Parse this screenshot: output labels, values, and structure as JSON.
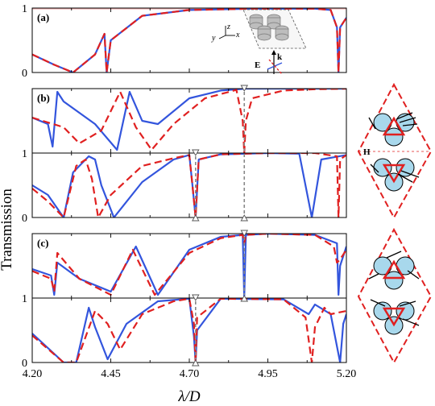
{
  "figure": {
    "ylabel": "Transmission",
    "xlabel": "λ/D",
    "series_colors": {
      "blue_solid": "#3355dd",
      "red_dashed": "#e02020"
    },
    "inset_labels": {
      "E": "E",
      "k": "k",
      "H": "H",
      "x": "x",
      "y": "y",
      "z": "z"
    }
  },
  "chart_data": [
    {
      "type": "line",
      "panel": "(a)",
      "panel_label": "(a)",
      "xlim": [
        4.2,
        5.2
      ],
      "ylim": [
        0,
        1
      ],
      "yticks": [
        "0",
        "1"
      ],
      "series": [
        {
          "style": "blue_solid",
          "x": [
            4.2,
            4.27,
            4.33,
            4.4,
            4.43,
            4.437,
            4.45,
            4.55,
            4.7,
            4.9,
            5.1,
            5.15,
            5.17,
            5.175,
            5.18,
            5.2
          ],
          "y": [
            0.28,
            0.12,
            0.0,
            0.28,
            0.6,
            0.0,
            0.5,
            0.88,
            0.97,
            0.99,
            0.99,
            0.97,
            0.7,
            0.0,
            0.7,
            0.85
          ]
        },
        {
          "style": "red_dashed",
          "x": [
            4.2,
            4.27,
            4.33,
            4.4,
            4.43,
            4.437,
            4.45,
            4.55,
            4.7,
            4.9,
            5.1,
            5.15,
            5.17,
            5.175,
            5.18,
            5.2
          ],
          "y": [
            0.28,
            0.12,
            0.0,
            0.28,
            0.6,
            0.0,
            0.5,
            0.88,
            0.97,
            0.99,
            0.99,
            0.97,
            0.7,
            0.0,
            0.7,
            0.85
          ]
        }
      ]
    },
    {
      "type": "line",
      "panel": "(b) upper",
      "panel_label": "(b)",
      "xlim": [
        4.2,
        5.2
      ],
      "ylim": [
        0,
        1
      ],
      "yticks": [],
      "series": [
        {
          "style": "blue_solid",
          "x": [
            4.2,
            4.25,
            4.265,
            4.28,
            4.3,
            4.4,
            4.47,
            4.51,
            4.55,
            4.6,
            4.7,
            4.8,
            4.88,
            5.0,
            5.2
          ],
          "y": [
            0.55,
            0.45,
            0.1,
            0.95,
            0.8,
            0.45,
            0.05,
            0.95,
            0.5,
            0.45,
            0.85,
            0.97,
            1.0,
            1.0,
            1.0
          ]
        },
        {
          "style": "red_dashed",
          "x": [
            4.2,
            4.3,
            4.35,
            4.42,
            4.48,
            4.53,
            4.58,
            4.65,
            4.75,
            4.85,
            4.87,
            4.875,
            4.88,
            4.9,
            5.0,
            5.1,
            5.2
          ],
          "y": [
            0.55,
            0.4,
            0.15,
            0.35,
            0.95,
            0.4,
            0.05,
            0.45,
            0.85,
            0.98,
            0.5,
            0.0,
            0.5,
            0.85,
            0.97,
            0.99,
            1.0
          ]
        }
      ]
    },
    {
      "type": "line",
      "panel": "(b) lower",
      "xlim": [
        4.2,
        5.2
      ],
      "ylim": [
        0,
        1
      ],
      "yticks": [
        "0",
        "1"
      ],
      "series": [
        {
          "style": "blue_solid",
          "x": [
            4.2,
            4.25,
            4.3,
            4.33,
            4.38,
            4.4,
            4.42,
            4.46,
            4.55,
            4.65,
            4.7,
            4.71,
            4.72,
            4.73,
            4.8,
            4.95,
            5.05,
            5.09,
            5.12,
            5.2
          ],
          "y": [
            0.5,
            0.35,
            0.0,
            0.7,
            0.95,
            0.9,
            0.5,
            0.0,
            0.55,
            0.9,
            0.97,
            0.5,
            0.0,
            0.9,
            0.98,
            1.0,
            0.99,
            0.0,
            0.9,
            0.97
          ]
        },
        {
          "style": "red_dashed",
          "x": [
            4.2,
            4.25,
            4.3,
            4.34,
            4.37,
            4.39,
            4.41,
            4.45,
            4.55,
            4.65,
            4.7,
            4.71,
            4.72,
            4.73,
            4.8,
            4.95,
            5.1,
            5.17,
            5.175,
            5.18,
            5.2
          ],
          "y": [
            0.45,
            0.25,
            0.0,
            0.8,
            0.9,
            0.6,
            0.0,
            0.35,
            0.8,
            0.92,
            0.97,
            0.5,
            0.0,
            0.9,
            0.98,
            1.0,
            1.0,
            0.95,
            0.0,
            0.9,
            0.97
          ]
        }
      ]
    },
    {
      "type": "line",
      "panel": "(c) upper",
      "panel_label": "(c)",
      "xlim": [
        4.2,
        5.2
      ],
      "ylim": [
        0,
        1
      ],
      "yticks": [],
      "series": [
        {
          "style": "blue_solid",
          "x": [
            4.2,
            4.26,
            4.27,
            4.28,
            4.35,
            4.45,
            4.53,
            4.6,
            4.7,
            4.8,
            4.87,
            4.875,
            4.88,
            4.95,
            5.1,
            5.17,
            5.175,
            5.18,
            5.2
          ],
          "y": [
            0.45,
            0.35,
            0.05,
            0.55,
            0.3,
            0.1,
            0.8,
            0.05,
            0.75,
            0.95,
            0.98,
            0.0,
            0.98,
            1.0,
            0.98,
            0.85,
            0.05,
            0.5,
            0.8
          ]
        },
        {
          "style": "red_dashed",
          "x": [
            4.2,
            4.26,
            4.27,
            4.28,
            4.35,
            4.45,
            4.52,
            4.59,
            4.7,
            4.8,
            4.87,
            4.875,
            4.88,
            4.95,
            5.1,
            5.16,
            5.17,
            5.18,
            5.2
          ],
          "y": [
            0.42,
            0.3,
            0.1,
            0.7,
            0.3,
            0.05,
            0.75,
            0.05,
            0.7,
            0.93,
            0.98,
            0.85,
            0.98,
            1.0,
            0.98,
            0.8,
            0.55,
            0.6,
            0.75
          ]
        }
      ]
    },
    {
      "type": "line",
      "panel": "(c) lower",
      "xlim": [
        4.2,
        5.2
      ],
      "ylim": [
        0,
        1
      ],
      "yticks": [
        "0",
        "1"
      ],
      "xticks": [
        "4.20",
        "4.45",
        "4.70",
        "4.95",
        "5.20"
      ],
      "series": [
        {
          "style": "blue_solid",
          "x": [
            4.2,
            4.3,
            4.34,
            4.38,
            4.4,
            4.44,
            4.5,
            4.6,
            4.7,
            4.715,
            4.72,
            4.725,
            4.8,
            5.0,
            5.08,
            5.1,
            5.15,
            5.18,
            5.19,
            5.2
          ],
          "y": [
            0.45,
            0.0,
            0.0,
            0.85,
            0.55,
            0.05,
            0.6,
            0.95,
            0.99,
            0.4,
            0.0,
            0.5,
            0.99,
            0.98,
            0.75,
            0.9,
            0.75,
            0.0,
            0.6,
            0.75
          ]
        },
        {
          "style": "red_dashed",
          "x": [
            4.2,
            4.3,
            4.34,
            4.4,
            4.44,
            4.48,
            4.55,
            4.65,
            4.7,
            4.715,
            4.72,
            4.725,
            4.8,
            5.0,
            5.07,
            5.09,
            5.1,
            5.13,
            5.15,
            5.2
          ],
          "y": [
            0.42,
            0.0,
            0.0,
            0.8,
            0.6,
            0.2,
            0.75,
            0.95,
            0.99,
            0.6,
            0.0,
            0.7,
            0.99,
            0.98,
            0.7,
            0.0,
            0.55,
            0.85,
            0.75,
            0.8
          ]
        }
      ]
    }
  ]
}
